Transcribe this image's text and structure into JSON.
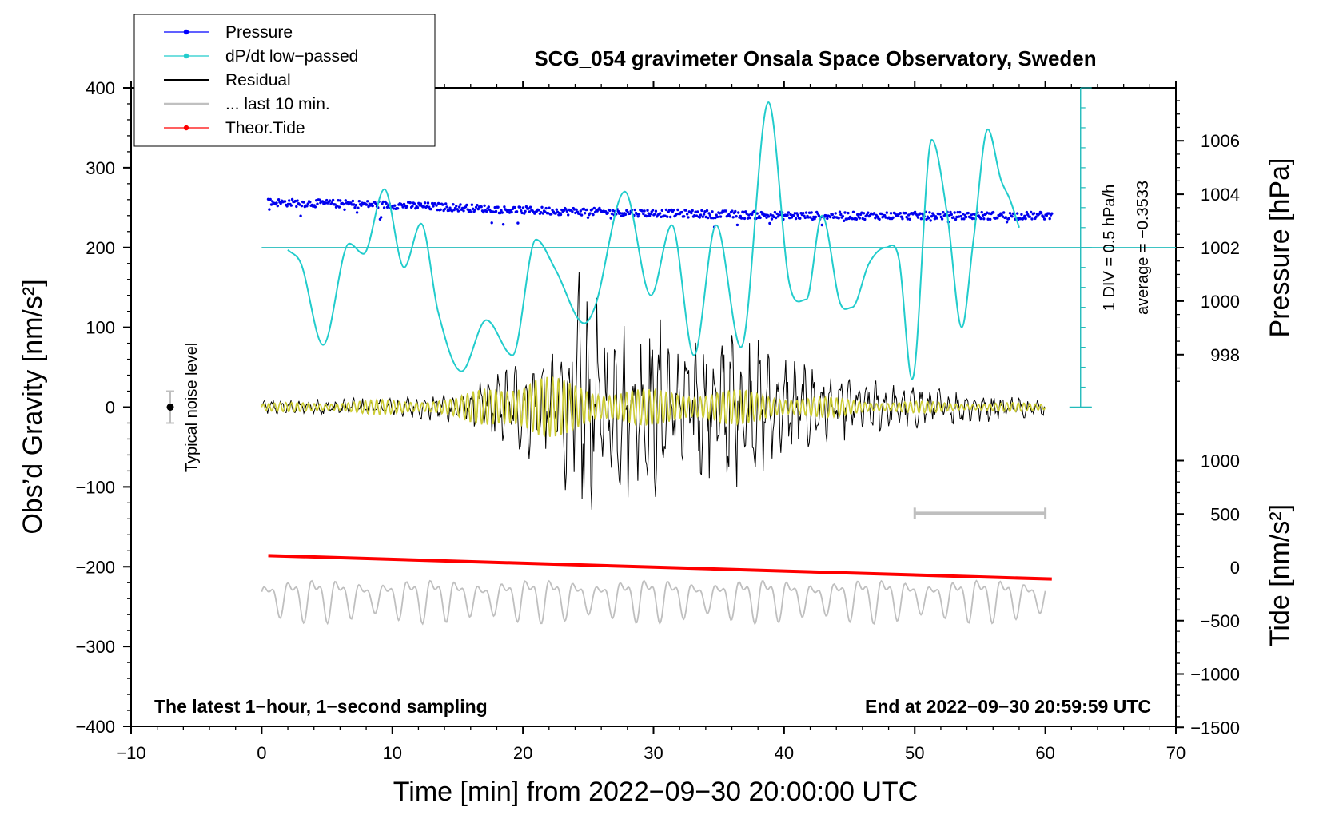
{
  "chart_data": {
    "type": "line",
    "title": "SCG_054 gravimeter Onsala Space Observatory, Sweden",
    "xlabel": "Time [min] from 2022−09−30 20:00:00 UTC",
    "ylabel_main": "Obs’d Gravity [nm/s²]",
    "ylabel_pressure": "Pressure [hPa]",
    "ylabel_tide": "Tide [nm/s²]",
    "xlim": [
      -10,
      70
    ],
    "ylim": [
      -400,
      400
    ],
    "x_ticks": [
      "−10",
      "0",
      "10",
      "20",
      "30",
      "40",
      "50",
      "60",
      "70"
    ],
    "y_ticks": [
      "400",
      "300",
      "200",
      "100",
      "0",
      "−100",
      "−200",
      "−300",
      "−400"
    ],
    "pressure_ticks": [
      "1006",
      "1004",
      "1002",
      "1000",
      "998"
    ],
    "tide_ticks": [
      "1000",
      "500",
      "0",
      "−500",
      "−1000",
      "−1500"
    ],
    "legend": [
      {
        "label": "Pressure",
        "color": "#0000ff"
      },
      {
        "label": "dP/dt low−passed",
        "color": "#22cccc"
      },
      {
        "label": "Residual",
        "color": "#000000"
      },
      {
        "label": "... last 10 min.",
        "color": "#c0c0c0"
      },
      {
        "label": "Theor.Tide",
        "color": "#ff0000"
      }
    ],
    "annotations": {
      "bottom_left": "The latest 1−hour, 1−second sampling",
      "bottom_right": "End at 2022−09−30 20:59:59 UTC",
      "noise": "Typical noise level",
      "div": "1 DIV = 0.5 hPa/h",
      "average": "average = −0.3533"
    },
    "series": [
      {
        "name": "Pressure",
        "units": "hPa",
        "x": [
          0.5,
          10,
          20,
          30,
          40,
          50,
          60.5
        ],
        "values": [
          1003.7,
          1003.6,
          1003.4,
          1003.3,
          1003.2,
          1003.2,
          1003.2
        ]
      },
      {
        "name": "dP/dt low-passed",
        "units": "nm/s2 (plot scale)",
        "x": [
          2,
          3,
          4.7,
          6.7,
          7.8,
          9.4,
          10.9,
          12.2,
          13.5,
          15.3,
          17.2,
          19.2,
          21.0,
          22.5,
          24.7,
          25.5,
          27.8,
          29.8,
          31.4,
          33.1,
          34.8,
          36.7,
          38.8,
          40.4,
          41.7,
          42.9,
          44.3,
          45.2,
          46.5,
          47.8,
          48.8,
          49.8,
          51.3,
          52.5,
          53.6,
          54.5,
          55.6,
          56.6,
          57.3,
          58.0
        ],
        "values": [
          197,
          180,
          78,
          205,
          192,
          273,
          175,
          230,
          120,
          45,
          109,
          65,
          210,
          172,
          105,
          125,
          270,
          140,
          228,
          65,
          228,
          75,
          382,
          155,
          135,
          240,
          130,
          125,
          180,
          200,
          185,
          35,
          335,
          240,
          100,
          210,
          348,
          285,
          260,
          225
        ]
      },
      {
        "name": "Residual",
        "units": "nm/s2",
        "x": [
          0,
          10,
          16,
          19,
          21,
          23,
          24,
          27,
          30,
          33,
          36,
          40,
          45,
          50,
          60
        ],
        "values": [
          10,
          12,
          25,
          60,
          70,
          85,
          180,
          120,
          120,
          110,
          110,
          70,
          40,
          30,
          12
        ]
      },
      {
        "name": "... last 10 min.",
        "units": "nm/s2",
        "x": [
          0,
          60
        ],
        "values": [
          -238,
          -238
        ]
      },
      {
        "name": "Theor.Tide",
        "units": "nm/s2 (tide axis)",
        "x": [
          0.5,
          60.5
        ],
        "values": [
          110,
          -110
        ]
      }
    ]
  }
}
